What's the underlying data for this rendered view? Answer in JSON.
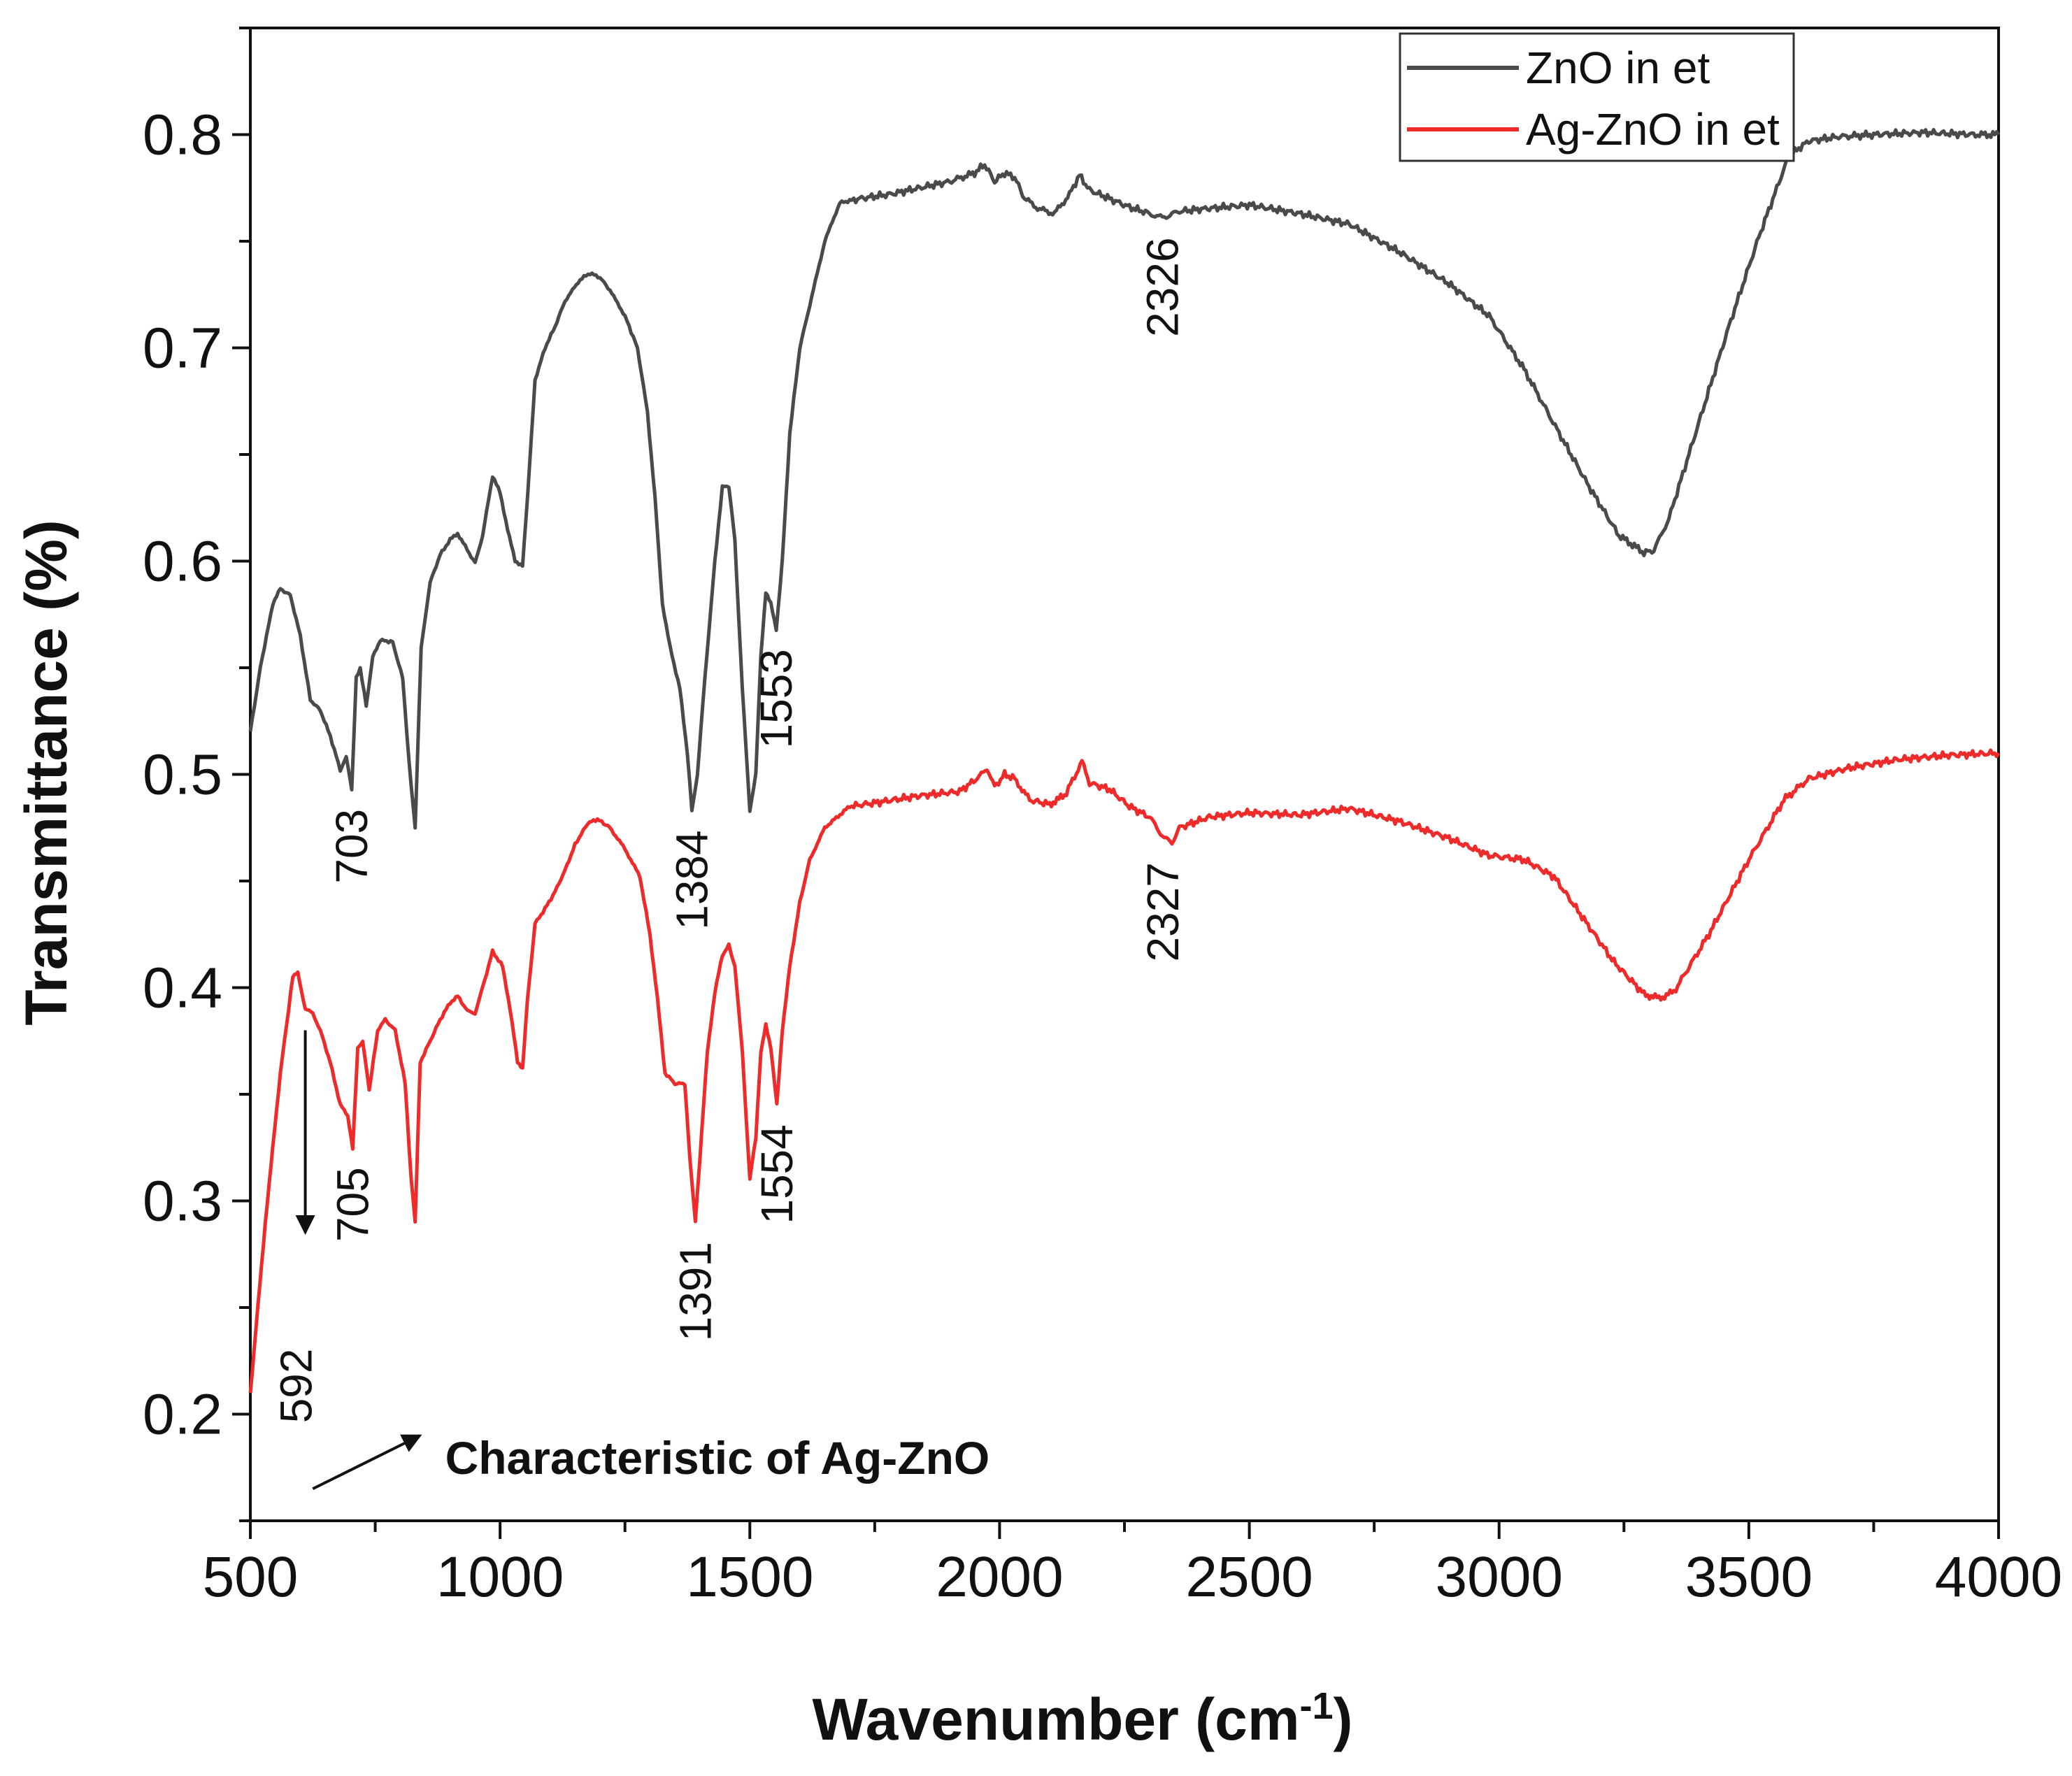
{
  "chart_data": {
    "type": "line",
    "title": "",
    "xlabel": "Wavenumber (cm",
    "xlabel_sup": "-1",
    "xlabel_close": ")",
    "ylabel": "Transmittance (%)",
    "xlim": [
      500,
      4000
    ],
    "ylim": [
      0.15,
      0.85
    ],
    "xticks": [
      500,
      1000,
      1500,
      2000,
      2500,
      3000,
      3500,
      4000
    ],
    "yticks": [
      0.2,
      0.3,
      0.4,
      0.5,
      0.6,
      0.7,
      0.8
    ],
    "ytick_labels": [
      "0.2",
      "0.3",
      "0.4",
      "0.5",
      "0.6",
      "0.7",
      "0.8"
    ],
    "grid": false,
    "legend_position": "top-right",
    "series": [
      {
        "name": "ZnO in et",
        "color": "#4a4a4a",
        "points": [
          [
            500,
            0.52
          ],
          [
            520,
            0.55
          ],
          [
            545,
            0.58
          ],
          [
            560,
            0.587
          ],
          [
            580,
            0.584
          ],
          [
            600,
            0.565
          ],
          [
            620,
            0.535
          ],
          [
            640,
            0.53
          ],
          [
            660,
            0.518
          ],
          [
            680,
            0.502
          ],
          [
            692,
            0.508
          ],
          [
            703,
            0.493
          ],
          [
            712,
            0.545
          ],
          [
            720,
            0.55
          ],
          [
            732,
            0.532
          ],
          [
            745,
            0.555
          ],
          [
            760,
            0.563
          ],
          [
            785,
            0.562
          ],
          [
            805,
            0.545
          ],
          [
            818,
            0.505
          ],
          [
            830,
            0.475
          ],
          [
            842,
            0.56
          ],
          [
            860,
            0.59
          ],
          [
            880,
            0.603
          ],
          [
            900,
            0.61
          ],
          [
            915,
            0.613
          ],
          [
            930,
            0.607
          ],
          [
            950,
            0.599
          ],
          [
            965,
            0.612
          ],
          [
            985,
            0.64
          ],
          [
            1000,
            0.632
          ],
          [
            1015,
            0.615
          ],
          [
            1030,
            0.6
          ],
          [
            1045,
            0.598
          ],
          [
            1055,
            0.63
          ],
          [
            1070,
            0.685
          ],
          [
            1090,
            0.7
          ],
          [
            1110,
            0.71
          ],
          [
            1130,
            0.722
          ],
          [
            1160,
            0.732
          ],
          [
            1180,
            0.735
          ],
          [
            1200,
            0.733
          ],
          [
            1220,
            0.727
          ],
          [
            1250,
            0.715
          ],
          [
            1275,
            0.7
          ],
          [
            1295,
            0.67
          ],
          [
            1310,
            0.63
          ],
          [
            1325,
            0.58
          ],
          [
            1340,
            0.56
          ],
          [
            1360,
            0.54
          ],
          [
            1375,
            0.51
          ],
          [
            1384,
            0.483
          ],
          [
            1395,
            0.5
          ],
          [
            1410,
            0.545
          ],
          [
            1430,
            0.6
          ],
          [
            1445,
            0.635
          ],
          [
            1458,
            0.635
          ],
          [
            1470,
            0.61
          ],
          [
            1485,
            0.54
          ],
          [
            1500,
            0.483
          ],
          [
            1512,
            0.5
          ],
          [
            1522,
            0.555
          ],
          [
            1532,
            0.585
          ],
          [
            1542,
            0.58
          ],
          [
            1553,
            0.568
          ],
          [
            1565,
            0.6
          ],
          [
            1580,
            0.66
          ],
          [
            1600,
            0.7
          ],
          [
            1620,
            0.72
          ],
          [
            1650,
            0.75
          ],
          [
            1680,
            0.768
          ],
          [
            1720,
            0.77
          ],
          [
            1780,
            0.772
          ],
          [
            1840,
            0.775
          ],
          [
            1900,
            0.778
          ],
          [
            1950,
            0.782
          ],
          [
            1970,
            0.786
          ],
          [
            1990,
            0.778
          ],
          [
            2010,
            0.782
          ],
          [
            2030,
            0.78
          ],
          [
            2050,
            0.77
          ],
          [
            2080,
            0.765
          ],
          [
            2110,
            0.763
          ],
          [
            2140,
            0.772
          ],
          [
            2160,
            0.781
          ],
          [
            2180,
            0.774
          ],
          [
            2220,
            0.77
          ],
          [
            2260,
            0.766
          ],
          [
            2300,
            0.763
          ],
          [
            2326,
            0.761
          ],
          [
            2360,
            0.764
          ],
          [
            2400,
            0.765
          ],
          [
            2500,
            0.767
          ],
          [
            2600,
            0.763
          ],
          [
            2700,
            0.758
          ],
          [
            2800,
            0.745
          ],
          [
            2900,
            0.73
          ],
          [
            2980,
            0.715
          ],
          [
            3050,
            0.69
          ],
          [
            3120,
            0.66
          ],
          [
            3180,
            0.635
          ],
          [
            3240,
            0.612
          ],
          [
            3290,
            0.604
          ],
          [
            3310,
            0.605
          ],
          [
            3340,
            0.62
          ],
          [
            3400,
            0.665
          ],
          [
            3460,
            0.71
          ],
          [
            3520,
            0.752
          ],
          [
            3580,
            0.79
          ],
          [
            3620,
            0.797
          ],
          [
            3680,
            0.799
          ],
          [
            3750,
            0.8
          ],
          [
            3850,
            0.801
          ],
          [
            3950,
            0.8
          ],
          [
            4000,
            0.8
          ]
        ]
      },
      {
        "name": "Ag-ZnO in et",
        "color": "#ee2a2a",
        "points": [
          [
            500,
            0.21
          ],
          [
            530,
            0.29
          ],
          [
            560,
            0.36
          ],
          [
            585,
            0.405
          ],
          [
            595,
            0.407
          ],
          [
            610,
            0.39
          ],
          [
            625,
            0.388
          ],
          [
            640,
            0.38
          ],
          [
            660,
            0.365
          ],
          [
            680,
            0.345
          ],
          [
            695,
            0.34
          ],
          [
            705,
            0.325
          ],
          [
            715,
            0.372
          ],
          [
            725,
            0.375
          ],
          [
            738,
            0.352
          ],
          [
            755,
            0.38
          ],
          [
            770,
            0.385
          ],
          [
            790,
            0.38
          ],
          [
            810,
            0.355
          ],
          [
            822,
            0.31
          ],
          [
            830,
            0.29
          ],
          [
            840,
            0.365
          ],
          [
            860,
            0.375
          ],
          [
            880,
            0.385
          ],
          [
            900,
            0.393
          ],
          [
            915,
            0.396
          ],
          [
            935,
            0.389
          ],
          [
            950,
            0.388
          ],
          [
            965,
            0.4
          ],
          [
            985,
            0.417
          ],
          [
            1005,
            0.41
          ],
          [
            1020,
            0.39
          ],
          [
            1035,
            0.365
          ],
          [
            1045,
            0.362
          ],
          [
            1055,
            0.395
          ],
          [
            1070,
            0.43
          ],
          [
            1090,
            0.437
          ],
          [
            1110,
            0.445
          ],
          [
            1130,
            0.455
          ],
          [
            1150,
            0.467
          ],
          [
            1175,
            0.477
          ],
          [
            1195,
            0.479
          ],
          [
            1220,
            0.475
          ],
          [
            1250,
            0.465
          ],
          [
            1280,
            0.452
          ],
          [
            1300,
            0.425
          ],
          [
            1315,
            0.395
          ],
          [
            1330,
            0.36
          ],
          [
            1350,
            0.355
          ],
          [
            1370,
            0.355
          ],
          [
            1380,
            0.32
          ],
          [
            1391,
            0.29
          ],
          [
            1400,
            0.32
          ],
          [
            1415,
            0.37
          ],
          [
            1430,
            0.398
          ],
          [
            1445,
            0.415
          ],
          [
            1458,
            0.42
          ],
          [
            1470,
            0.41
          ],
          [
            1485,
            0.37
          ],
          [
            1500,
            0.31
          ],
          [
            1512,
            0.33
          ],
          [
            1522,
            0.37
          ],
          [
            1532,
            0.383
          ],
          [
            1542,
            0.372
          ],
          [
            1554,
            0.345
          ],
          [
            1565,
            0.38
          ],
          [
            1580,
            0.41
          ],
          [
            1600,
            0.44
          ],
          [
            1620,
            0.46
          ],
          [
            1650,
            0.475
          ],
          [
            1700,
            0.485
          ],
          [
            1760,
            0.487
          ],
          [
            1840,
            0.49
          ],
          [
            1920,
            0.492
          ],
          [
            1960,
            0.499
          ],
          [
            1975,
            0.503
          ],
          [
            1990,
            0.494
          ],
          [
            2010,
            0.5
          ],
          [
            2030,
            0.498
          ],
          [
            2060,
            0.488
          ],
          [
            2100,
            0.486
          ],
          [
            2130,
            0.49
          ],
          [
            2150,
            0.499
          ],
          [
            2165,
            0.506
          ],
          [
            2180,
            0.496
          ],
          [
            2220,
            0.493
          ],
          [
            2260,
            0.485
          ],
          [
            2300,
            0.48
          ],
          [
            2330,
            0.47
          ],
          [
            2345,
            0.468
          ],
          [
            2360,
            0.475
          ],
          [
            2420,
            0.48
          ],
          [
            2500,
            0.482
          ],
          [
            2600,
            0.481
          ],
          [
            2700,
            0.484
          ],
          [
            2800,
            0.478
          ],
          [
            2900,
            0.47
          ],
          [
            2980,
            0.462
          ],
          [
            3050,
            0.46
          ],
          [
            3110,
            0.452
          ],
          [
            3170,
            0.432
          ],
          [
            3230,
            0.412
          ],
          [
            3290,
            0.397
          ],
          [
            3320,
            0.395
          ],
          [
            3350,
            0.398
          ],
          [
            3420,
            0.425
          ],
          [
            3500,
            0.46
          ],
          [
            3570,
            0.488
          ],
          [
            3620,
            0.498
          ],
          [
            3700,
            0.503
          ],
          [
            3800,
            0.507
          ],
          [
            3900,
            0.509
          ],
          [
            4000,
            0.51
          ]
        ]
      }
    ],
    "peak_labels": [
      {
        "text": "703",
        "x": 703,
        "y": 0.493,
        "series": 0
      },
      {
        "text": "1384",
        "x": 1384,
        "y": 0.483,
        "series": 0
      },
      {
        "text": "1553",
        "x": 1553,
        "y": 0.568,
        "series": 0
      },
      {
        "text": "2326",
        "x": 2326,
        "y": 0.761,
        "series": 0
      },
      {
        "text": "705",
        "x": 705,
        "y": 0.325,
        "series": 1
      },
      {
        "text": "1391",
        "x": 1391,
        "y": 0.29,
        "series": 1
      },
      {
        "text": "1554",
        "x": 1554,
        "y": 0.345,
        "series": 1
      },
      {
        "text": "2327",
        "x": 2327,
        "y": 0.468,
        "series": 1
      },
      {
        "text": "592",
        "x": 592,
        "y": 0.24,
        "series": -1
      }
    ],
    "annotation": {
      "text": "Characteristic of Ag-ZnO",
      "peak_arrow": {
        "x": 610,
        "y_from": 0.38,
        "y_to": 0.285
      },
      "pointer_arrow": {
        "x_from": 625,
        "y_from": 0.165,
        "x_to": 840,
        "y_to": 0.19
      },
      "text_anchor": {
        "x": 890,
        "y": 0.172
      }
    }
  }
}
